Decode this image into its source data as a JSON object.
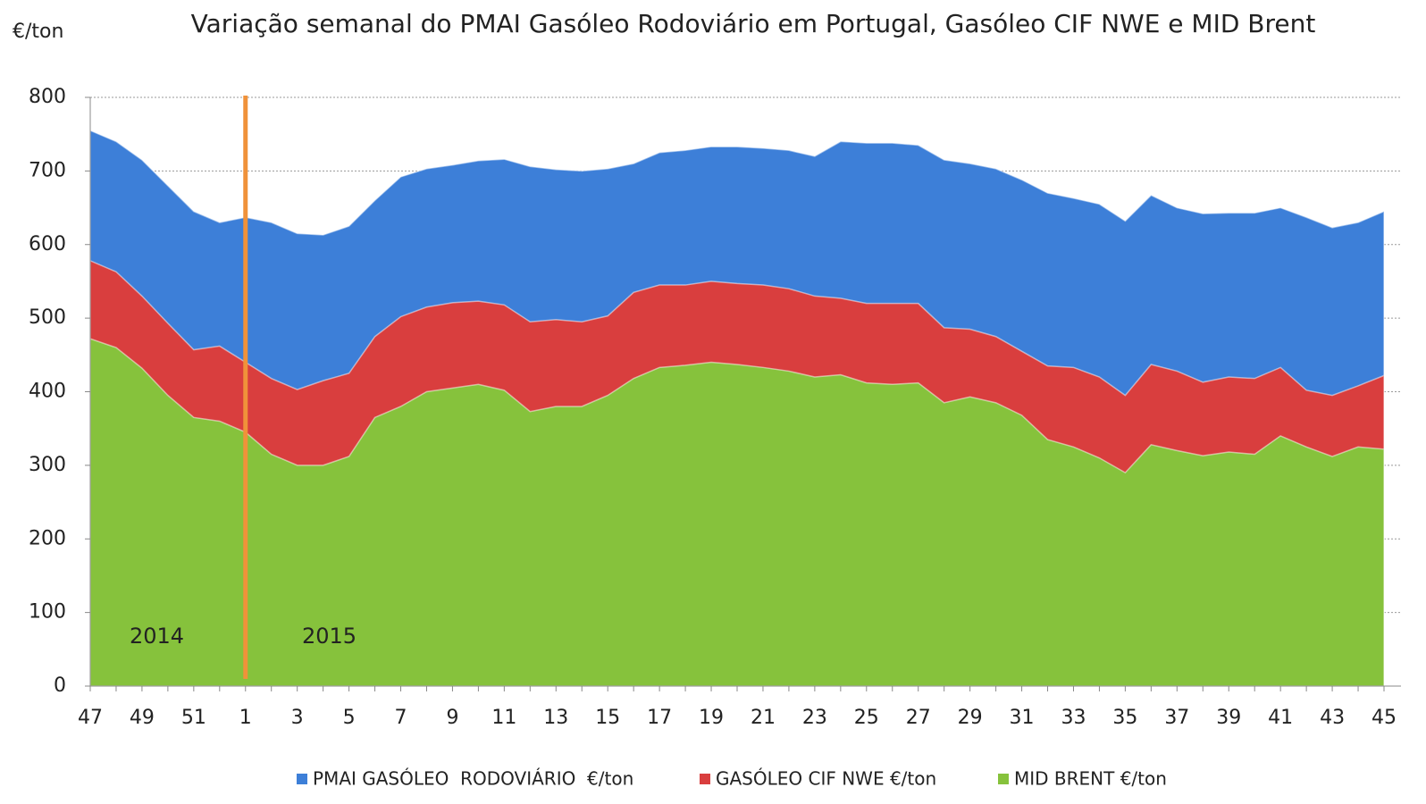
{
  "chart_data": {
    "type": "area",
    "title": "Variação semanal do PMAI Gasóleo Rodoviário em Portugal, Gasóleo CIF NWE e MID Brent",
    "y_label": "€/ton",
    "annotations": [
      "2014",
      "2015"
    ],
    "categories": [
      "47",
      null,
      "49",
      null,
      "51",
      null,
      "1",
      null,
      "3",
      null,
      "5",
      null,
      "7",
      null,
      "9",
      null,
      "11",
      null,
      "13",
      null,
      "15",
      null,
      "17",
      null,
      "19",
      null,
      "21",
      null,
      "23",
      null,
      "25",
      null,
      "27",
      null,
      "29",
      null,
      "31",
      null,
      "33",
      null,
      "35",
      null,
      "37",
      null,
      "39",
      null,
      "41",
      null,
      "43",
      null,
      "45"
    ],
    "series": [
      {
        "name": "PMAI GASÓLEO  RODOVIÁRIO  €/ton",
        "color": "#3d7fd8",
        "values": [
          755,
          740,
          715,
          680,
          645,
          630,
          637,
          630,
          615,
          613,
          625,
          660,
          692,
          703,
          708,
          714,
          716,
          706,
          702,
          700,
          703,
          710,
          725,
          728,
          733,
          733,
          731,
          728,
          720,
          740,
          738,
          738,
          735,
          715,
          710,
          703,
          688,
          670,
          663,
          655,
          632,
          667,
          650,
          642,
          643,
          643,
          650,
          637,
          623,
          630,
          645
        ]
      },
      {
        "name": "GASÓLEO CIF NWE €/ton",
        "color": "#d93e3e",
        "values": [
          578,
          563,
          530,
          493,
          457,
          462,
          440,
          418,
          403,
          415,
          425,
          475,
          502,
          515,
          521,
          523,
          518,
          495,
          498,
          495,
          503,
          535,
          545,
          545,
          550,
          547,
          545,
          540,
          530,
          527,
          520,
          520,
          520,
          487,
          485,
          475,
          455,
          435,
          433,
          420,
          395,
          437,
          428,
          413,
          420,
          418,
          433,
          402,
          395,
          408,
          422
        ]
      },
      {
        "name": "MID BRENT €/ton",
        "color": "#86c23c",
        "values": [
          472,
          460,
          432,
          395,
          365,
          360,
          345,
          315,
          300,
          300,
          312,
          365,
          380,
          400,
          405,
          410,
          402,
          373,
          380,
          380,
          395,
          418,
          433,
          436,
          440,
          437,
          433,
          428,
          420,
          423,
          412,
          410,
          412,
          385,
          393,
          385,
          368,
          335,
          325,
          310,
          290,
          328,
          320,
          313,
          318,
          315,
          340,
          325,
          312,
          325,
          322
        ]
      }
    ],
    "ylim": [
      0,
      800
    ],
    "yticks": [
      0,
      100,
      200,
      300,
      400,
      500,
      600,
      700,
      800
    ],
    "grid": true,
    "legend": "bottom"
  }
}
